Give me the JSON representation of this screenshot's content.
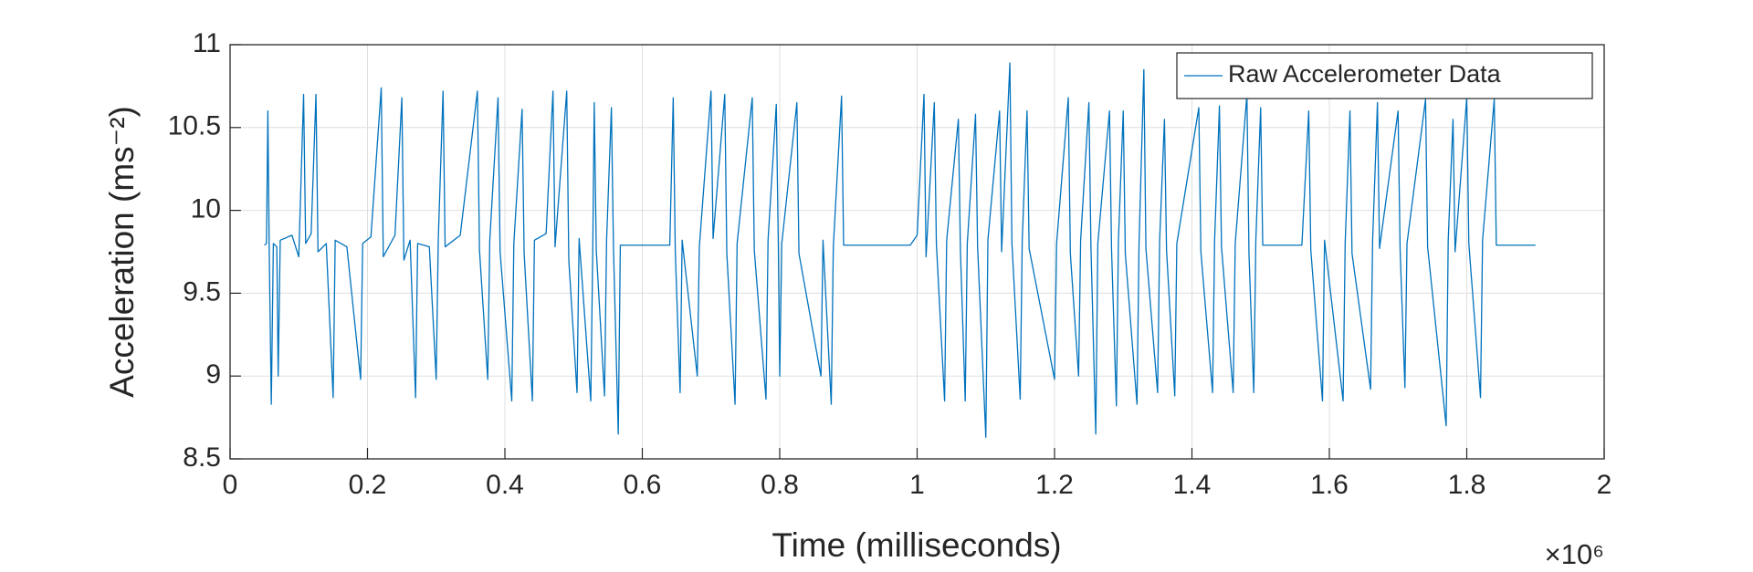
{
  "chart_data": {
    "type": "line",
    "xlabel": "Time (milliseconds)",
    "ylabel": "Acceleration (ms⁻²)",
    "x_multiplier": "×10⁶",
    "xlim": [
      0,
      2000000
    ],
    "ylim": [
      8.5,
      11
    ],
    "xticks": [
      0,
      {
        "value": 200000,
        "label": "0.2"
      },
      {
        "value": 400000,
        "label": "0.4"
      },
      {
        "value": 600000,
        "label": "0.6"
      },
      {
        "value": 800000,
        "label": "0.8"
      },
      {
        "value": 1000000,
        "label": "1"
      },
      {
        "value": 1200000,
        "label": "1.2"
      },
      {
        "value": 1400000,
        "label": "1.4"
      },
      {
        "value": 1600000,
        "label": "1.6"
      },
      {
        "value": 1800000,
        "label": "1.8"
      },
      {
        "value": 2000000,
        "label": "2"
      }
    ],
    "yticks": [
      8.5,
      9,
      9.5,
      10,
      10.5,
      11
    ],
    "grid": true,
    "legend": "upper right",
    "x": [
      50000,
      53000,
      55000,
      57000,
      60000,
      63000,
      68000,
      70000,
      73000,
      90000,
      100000,
      107000,
      110000,
      118000,
      125000,
      128000,
      140000,
      150000,
      153000,
      170000,
      190000,
      193000,
      205000,
      220000,
      223000,
      240000,
      250000,
      253000,
      262000,
      270000,
      273000,
      290000,
      300000,
      303000,
      310000,
      313000,
      335000,
      360000,
      363000,
      375000,
      378000,
      390000,
      393000,
      410000,
      413000,
      425000,
      428000,
      440000,
      443000,
      460000,
      470000,
      473000,
      490000,
      493000,
      505000,
      508000,
      525000,
      528000,
      530000,
      533000,
      545000,
      548000,
      555000,
      558000,
      565000,
      568000,
      600000,
      640000,
      645000,
      648000,
      655000,
      658000,
      680000,
      683000,
      700000,
      703000,
      720000,
      723000,
      735000,
      738000,
      760000,
      763000,
      780000,
      783000,
      795000,
      798000,
      800000,
      803000,
      825000,
      828000,
      860000,
      863000,
      875000,
      878000,
      890000,
      893000,
      950000,
      990000,
      1000000,
      1010000,
      1013000,
      1025000,
      1028000,
      1040000,
      1043000,
      1060000,
      1063000,
      1070000,
      1073000,
      1085000,
      1088000,
      1100000,
      1103000,
      1120000,
      1123000,
      1135000,
      1138000,
      1150000,
      1153000,
      1160000,
      1163000,
      1200000,
      1203000,
      1220000,
      1223000,
      1235000,
      1238000,
      1250000,
      1253000,
      1260000,
      1263000,
      1280000,
      1283000,
      1290000,
      1293000,
      1300000,
      1303000,
      1320000,
      1323000,
      1330000,
      1333000,
      1350000,
      1353000,
      1360000,
      1363000,
      1375000,
      1378000,
      1410000,
      1413000,
      1430000,
      1433000,
      1440000,
      1443000,
      1460000,
      1463000,
      1480000,
      1483000,
      1490000,
      1493000,
      1500000,
      1503000,
      1530000,
      1560000,
      1570000,
      1573000,
      1590000,
      1593000,
      1620000,
      1623000,
      1630000,
      1633000,
      1660000,
      1663000,
      1670000,
      1673000,
      1700000,
      1703000,
      1710000,
      1713000,
      1740000,
      1743000,
      1770000,
      1773000,
      1780000,
      1783000,
      1800000,
      1803000,
      1820000,
      1823000,
      1840000,
      1843000,
      1900000
    ],
    "series": [
      {
        "name": "Raw Accelerometer Data",
        "color": "#0072bd",
        "values": [
          9.79,
          9.8,
          10.6,
          9.75,
          8.83,
          9.8,
          9.78,
          9.0,
          9.82,
          9.85,
          9.72,
          10.7,
          9.8,
          9.86,
          10.7,
          9.75,
          9.8,
          8.87,
          9.82,
          9.78,
          8.98,
          9.8,
          9.84,
          10.74,
          9.72,
          9.85,
          10.68,
          9.7,
          9.82,
          8.87,
          9.8,
          9.78,
          8.98,
          9.82,
          10.72,
          9.78,
          9.85,
          10.72,
          9.76,
          8.98,
          9.82,
          10.68,
          9.75,
          8.85,
          9.8,
          10.61,
          9.74,
          8.85,
          9.82,
          9.86,
          10.72,
          9.78,
          10.72,
          9.7,
          8.9,
          9.83,
          8.85,
          9.8,
          10.65,
          9.76,
          8.88,
          9.82,
          10.62,
          9.78,
          8.65,
          9.79,
          9.79,
          9.79,
          10.68,
          9.75,
          8.9,
          9.82,
          9.0,
          9.78,
          10.72,
          9.83,
          10.7,
          9.74,
          8.83,
          9.8,
          10.68,
          9.76,
          8.86,
          9.82,
          10.64,
          9.78,
          9.0,
          9.8,
          10.65,
          9.74,
          9.0,
          9.82,
          8.83,
          9.78,
          10.69,
          9.79,
          9.79,
          9.79,
          9.85,
          10.7,
          9.72,
          10.65,
          9.8,
          8.85,
          9.82,
          10.55,
          9.76,
          8.85,
          9.8,
          10.58,
          9.78,
          8.63,
          9.82,
          10.6,
          9.75,
          10.89,
          9.8,
          8.86,
          9.82,
          10.6,
          9.77,
          8.98,
          9.8,
          10.68,
          9.74,
          9.0,
          9.82,
          10.65,
          9.78,
          8.65,
          9.8,
          10.6,
          9.76,
          8.82,
          9.82,
          10.6,
          9.74,
          8.83,
          9.8,
          10.85,
          9.77,
          8.9,
          9.82,
          10.55,
          9.76,
          8.88,
          9.8,
          10.62,
          9.75,
          8.9,
          9.82,
          10.63,
          9.78,
          8.9,
          9.8,
          10.7,
          9.74,
          8.9,
          9.82,
          10.62,
          9.79,
          9.79,
          9.79,
          10.6,
          9.76,
          8.85,
          9.82,
          8.85,
          9.8,
          10.6,
          9.74,
          8.92,
          9.82,
          10.65,
          9.77,
          10.6,
          9.76,
          8.93,
          9.8,
          10.67,
          9.78,
          8.7,
          9.82,
          10.55,
          9.75,
          10.68,
          9.8,
          8.87,
          9.82,
          10.67,
          9.79,
          9.79
        ]
      }
    ]
  }
}
